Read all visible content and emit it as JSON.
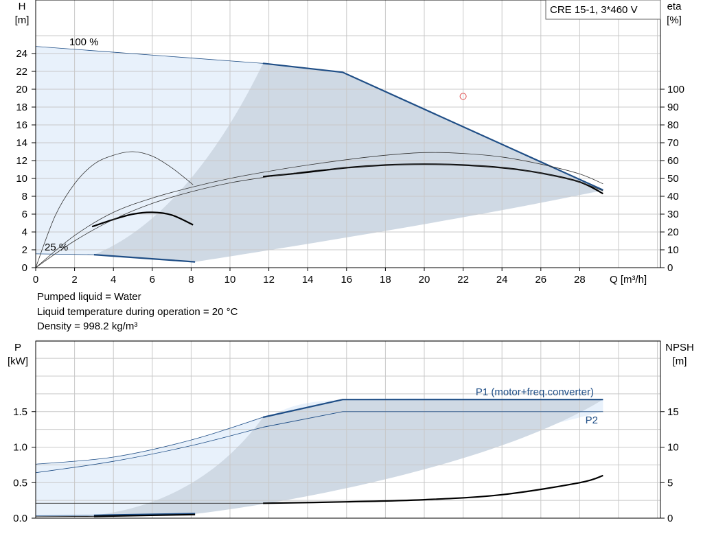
{
  "model_box": "CRE 15-1, 3*460 V",
  "info": {
    "line1": "Pumped liquid = Water",
    "line2": "Liquid temperature during operation = 20 °C",
    "line3": "Density = 998.2 kg/m³"
  },
  "colors": {
    "grid": "#c8c8c8",
    "envelope_light": "#e8f1fb",
    "envelope_dark": "#cfd9e4",
    "curve_blue": "#1f4e86",
    "label_blue": "#1f4e86",
    "efficiency": "#000000",
    "operating_point": "#e05050"
  },
  "chart_data": [
    {
      "type": "line",
      "title": "CRE 15-1, 3*460 V",
      "xlabel": "Q [m³/h]",
      "ylabel": "H\n[m]",
      "y2label": "eta\n[%]",
      "xlim": [
        0,
        32
      ],
      "ylim": [
        0,
        26
      ],
      "y2lim": [
        0,
        130
      ],
      "x_ticks": [
        0,
        2,
        4,
        6,
        8,
        10,
        12,
        14,
        16,
        18,
        20,
        22,
        24,
        26,
        28
      ],
      "y_ticks": [
        0,
        2,
        4,
        6,
        8,
        10,
        12,
        14,
        16,
        18,
        20,
        22,
        24
      ],
      "y2_ticks": [
        0,
        10,
        20,
        30,
        40,
        50,
        60,
        70,
        80,
        90,
        100
      ],
      "grid": true,
      "annotations": [
        "100 %",
        "25 %"
      ],
      "series": [
        {
          "role": "head-100",
          "x": [
            0,
            11.7,
            15.8,
            29.2
          ],
          "y": [
            24.8,
            22.9,
            21.9,
            8.7
          ],
          "bold_from": 11.7
        },
        {
          "role": "head-25",
          "x": [
            0,
            3.0,
            8.2
          ],
          "y": [
            1.55,
            1.45,
            0.65
          ],
          "bold_from": 3.0
        },
        {
          "role": "eta-100",
          "x": [
            11.7,
            14,
            16,
            18,
            20,
            22,
            24,
            26,
            28,
            29.2
          ],
          "y": [
            51,
            53.5,
            56,
            57.5,
            58,
            57.5,
            56,
            53,
            48,
            41.5
          ],
          "axis": "y2"
        },
        {
          "role": "eta-25",
          "x": [
            2.9,
            4,
            5,
            6,
            7,
            8.1
          ],
          "y": [
            23,
            27,
            30,
            31,
            29.5,
            24
          ],
          "axis": "y2"
        },
        {
          "role": "eta-thin-upper",
          "x": [
            0,
            2,
            4,
            6,
            8,
            10,
            12,
            14,
            16,
            18,
            20,
            22,
            24,
            26,
            28,
            29.2
          ],
          "y": [
            0,
            18,
            31,
            39,
            45,
            50,
            54,
            57.5,
            60.5,
            63,
            64.5,
            64,
            62,
            58,
            52.5,
            47
          ],
          "axis": "y2"
        },
        {
          "role": "eta-thin-lower",
          "x": [
            0,
            2,
            4,
            6,
            8,
            10,
            12,
            14,
            16,
            18,
            20,
            22,
            24,
            26,
            28,
            29.2
          ],
          "y": [
            0,
            15,
            27,
            36,
            42.5,
            47.5,
            51,
            54,
            56,
            57.5,
            58,
            57.5,
            56,
            53,
            48,
            43
          ],
          "axis": "y2"
        },
        {
          "role": "eta-thin-25",
          "x": [
            0,
            1,
            2,
            3,
            4,
            5,
            6,
            7,
            8.1
          ],
          "y": [
            0,
            29,
            47,
            58,
            63,
            65,
            62.5,
            56,
            46.5
          ],
          "axis": "y2"
        }
      ],
      "operating_point": {
        "x": 22,
        "y": 19.2
      }
    },
    {
      "type": "line",
      "xlabel": "",
      "ylabel": "P\n[kW]",
      "y2label": "NPSH\n[m]",
      "xlim": [
        0,
        32
      ],
      "ylim": [
        0,
        2.0
      ],
      "y2lim": [
        0,
        20
      ],
      "y_ticks": [
        "0.0",
        "0.5",
        "1.0",
        "1.5"
      ],
      "y2_ticks": [
        0,
        5,
        10,
        15
      ],
      "grid": true,
      "series": [
        {
          "name": "P1 (motor+freq.converter)",
          "x": [
            0,
            4,
            8,
            11.7,
            15.8,
            29.2
          ],
          "y": [
            0.76,
            0.86,
            1.1,
            1.42,
            1.67,
            1.67
          ],
          "bold_from": 11.7
        },
        {
          "name": "P2",
          "x": [
            0,
            4,
            8,
            11.7,
            15.8,
            29.2
          ],
          "y": [
            0.64,
            0.8,
            1.02,
            1.28,
            1.5,
            1.5
          ],
          "bold_from": 11.7
        },
        {
          "role": "P1-25",
          "x": [
            0,
            3,
            8.2
          ],
          "y": [
            0.035,
            0.04,
            0.065
          ],
          "bold_from": 3
        },
        {
          "role": "P2-25",
          "x": [
            0,
            3,
            8.2
          ],
          "y": [
            0.02,
            0.025,
            0.05
          ],
          "bold_from": 3
        },
        {
          "role": "npsh",
          "x": [
            0,
            11.7,
            16,
            20,
            24,
            28,
            29.2
          ],
          "y": [
            2.1,
            2.1,
            2.3,
            2.6,
            3.3,
            5.0,
            6.0
          ],
          "bold_from": 11.7,
          "axis": "y2"
        }
      ]
    }
  ]
}
